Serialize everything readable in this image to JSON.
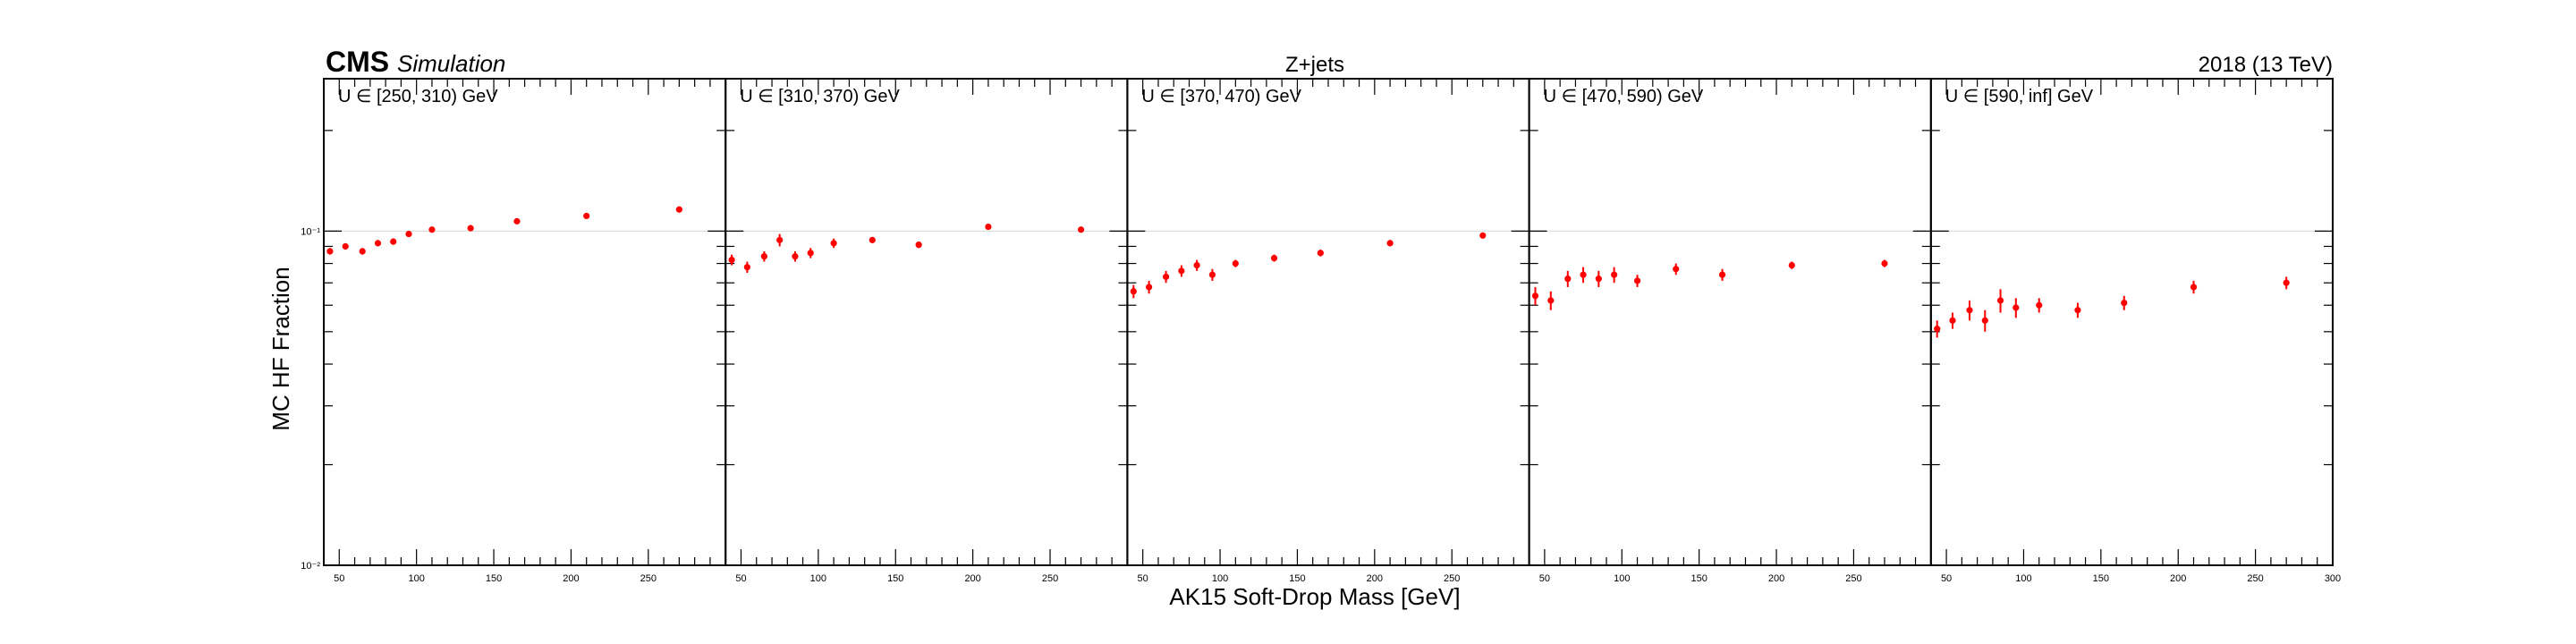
{
  "header": {
    "experiment": "CMS",
    "tag": "Simulation",
    "process": "Z+jets",
    "lumi": "2018 (13 TeV)"
  },
  "chart_data": {
    "type": "scatter",
    "scale": "log-y",
    "xlabel": "AK15 Soft-Drop Mass [GeV]",
    "ylabel": "MC HF Fraction",
    "ylim": [
      0.01,
      0.2857
    ],
    "xlim": [
      40,
      300
    ],
    "x_ticks": [
      "50",
      "100",
      "150",
      "200",
      "250",
      "300"
    ],
    "y_ticks": [
      "10⁻²",
      "10⁻¹"
    ],
    "reference_line_y": 0.1,
    "marker_color": "#ff0000",
    "panels": [
      {
        "label": "U ∈ [250, 310) GeV",
        "x": [
          44,
          54,
          65,
          75,
          85,
          95,
          110,
          135,
          165,
          210,
          270
        ],
        "y": [
          0.087,
          0.09,
          0.087,
          0.092,
          0.093,
          0.098,
          0.101,
          0.102,
          0.107,
          0.111,
          0.116
        ],
        "yerr": [
          0.002,
          0.002,
          0.002,
          0.002,
          0.002,
          0.002,
          0.002,
          0.001,
          0.001,
          0.001,
          0.002
        ]
      },
      {
        "label": "U ∈ [310, 370) GeV",
        "x": [
          44,
          54,
          65,
          75,
          85,
          95,
          110,
          135,
          165,
          210,
          270
        ],
        "y": [
          0.082,
          0.078,
          0.084,
          0.094,
          0.084,
          0.086,
          0.092,
          0.094,
          0.091,
          0.103,
          0.101
        ],
        "yerr": [
          0.003,
          0.003,
          0.003,
          0.004,
          0.003,
          0.003,
          0.003,
          0.002,
          0.002,
          0.002,
          0.002
        ]
      },
      {
        "label": "U ∈ [370, 470) GeV",
        "x": [
          44,
          54,
          65,
          75,
          85,
          95,
          110,
          135,
          165,
          210,
          270
        ],
        "y": [
          0.066,
          0.068,
          0.073,
          0.076,
          0.079,
          0.074,
          0.08,
          0.083,
          0.086,
          0.092,
          0.097
        ],
        "yerr": [
          0.003,
          0.003,
          0.003,
          0.003,
          0.003,
          0.003,
          0.002,
          0.002,
          0.002,
          0.002,
          0.002
        ]
      },
      {
        "label": "U ∈ [470, 590) GeV",
        "x": [
          44,
          54,
          65,
          75,
          85,
          95,
          110,
          135,
          165,
          210,
          270
        ],
        "y": [
          0.064,
          0.062,
          0.072,
          0.074,
          0.072,
          0.074,
          0.071,
          0.077,
          0.074,
          0.079,
          0.08
        ],
        "yerr": [
          0.004,
          0.004,
          0.004,
          0.004,
          0.004,
          0.004,
          0.003,
          0.003,
          0.003,
          0.002,
          0.002
        ]
      },
      {
        "label": "U ∈ [590, inf] GeV",
        "x": [
          44,
          54,
          65,
          75,
          85,
          95,
          110,
          135,
          165,
          210,
          270
        ],
        "y": [
          0.051,
          0.054,
          0.058,
          0.054,
          0.062,
          0.059,
          0.06,
          0.058,
          0.061,
          0.068,
          0.07
        ],
        "yerr": [
          0.003,
          0.003,
          0.004,
          0.004,
          0.005,
          0.004,
          0.003,
          0.003,
          0.003,
          0.003,
          0.003
        ]
      }
    ]
  }
}
